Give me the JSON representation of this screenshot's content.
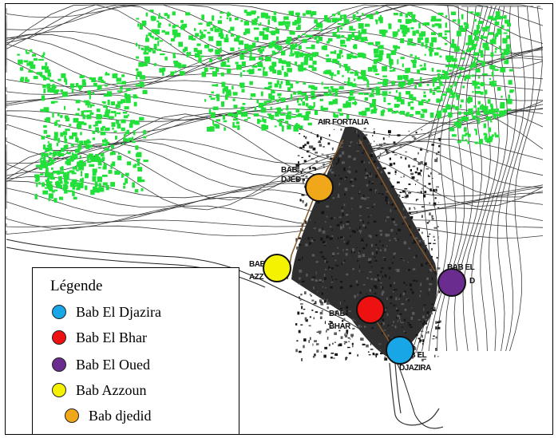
{
  "legend": {
    "title": "Légende",
    "items": [
      {
        "label": "Bab El Djazira",
        "color": "#19a6e6"
      },
      {
        "label": "Bab El Bhar",
        "color": "#ee1111"
      },
      {
        "label": "Bab El Oued",
        "color": "#6a2c8f"
      },
      {
        "label": "Bab Azzoun",
        "color": "#f5f200"
      },
      {
        "label": "Bab djedid",
        "color": "#f0a81a"
      }
    ]
  },
  "map_labels": {
    "top": "AIR FORTALIA",
    "bab_djedid_1": "BAB",
    "bab_djedid_2": "DJED",
    "bab_azzoun_1": "BAB",
    "bab_azzoun_2": "AZZ",
    "bab_el_oued": "BAB EL",
    "bab_el_oued_2": "D",
    "bab_bhar_1": "BAB",
    "bab_bhar_2": "BHAR",
    "bab_djazira_1": "BAB EL",
    "bab_djazira_2": "DJAZIRA"
  },
  "colors": {
    "vegetation": "#22e03a",
    "city": "#2f2f2f",
    "contour": "#3a3a3a"
  }
}
